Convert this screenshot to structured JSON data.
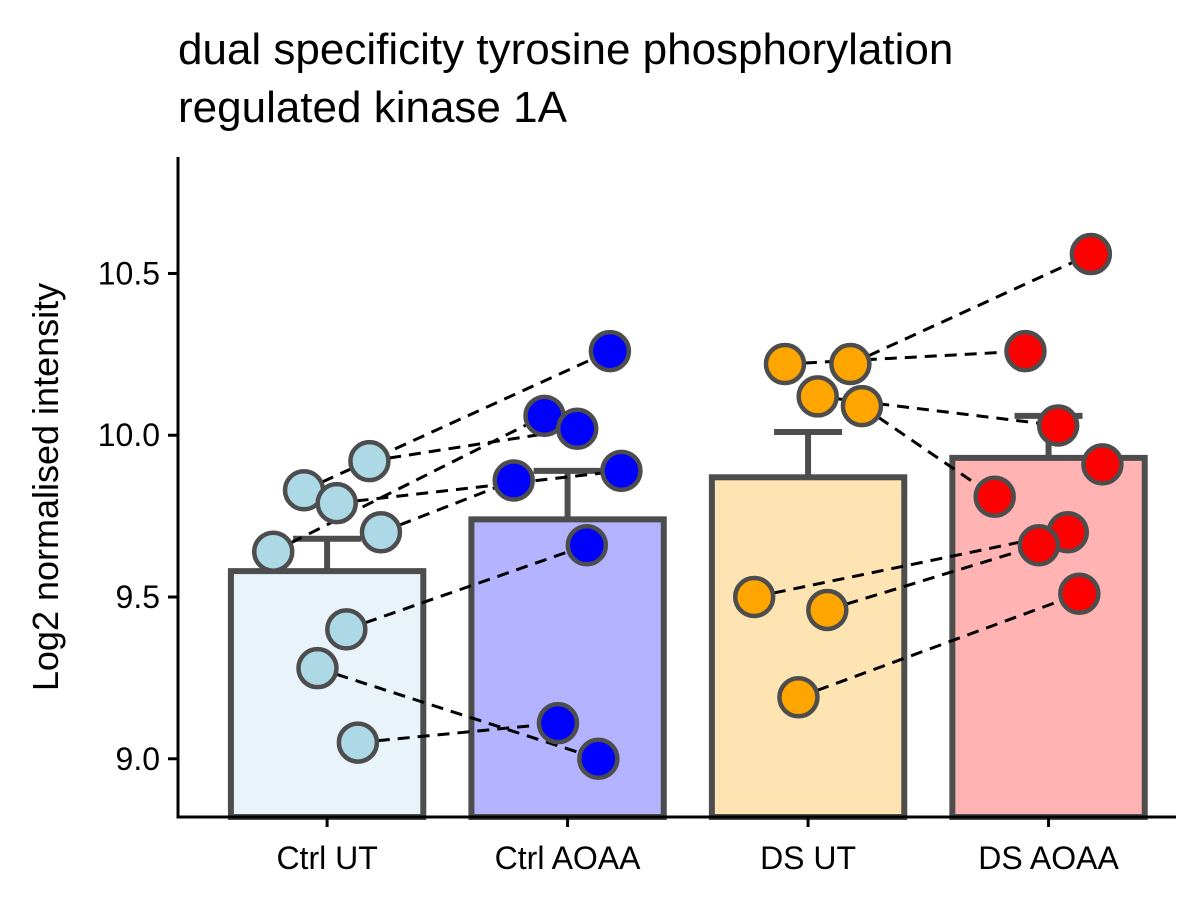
{
  "chart_data": {
    "type": "bar",
    "title_lines": [
      "dual specificity tyrosine phosphorylation",
      "regulated kinase 1A"
    ],
    "xlabel": "",
    "ylabel": "Log2 normalised intensity",
    "ylim": [
      8.82,
      10.86
    ],
    "yticks": [
      9.0,
      9.5,
      10.0,
      10.5
    ],
    "ytick_labels": [
      "9.0",
      "9.5",
      "10.0",
      "10.5"
    ],
    "grid": false,
    "legend": "none",
    "categories": [
      "Ctrl UT",
      "Ctrl AOAA",
      "DS UT",
      "DS AOAA"
    ],
    "bars": [
      {
        "category": "Ctrl UT",
        "mean": 9.58,
        "error_upper": 9.68,
        "fill": "#e8f3fa",
        "point_color": "#add8e6",
        "points": [
          9.92,
          9.83,
          9.79,
          9.7,
          9.64,
          9.4,
          9.28,
          9.05
        ]
      },
      {
        "category": "Ctrl AOAA",
        "mean": 9.74,
        "error_upper": 9.89,
        "fill": "#b3b3ff",
        "point_color": "#0000ff",
        "points": [
          10.26,
          10.06,
          10.02,
          9.89,
          9.86,
          9.66,
          9.11,
          9.0
        ]
      },
      {
        "category": "DS UT",
        "mean": 9.87,
        "error_upper": 10.01,
        "fill": "#fee4b3",
        "point_color": "#ffa500",
        "points": [
          10.22,
          10.22,
          10.12,
          10.09,
          9.5,
          9.46,
          9.19
        ]
      },
      {
        "category": "DS AOAA",
        "mean": 9.93,
        "error_upper": 10.06,
        "fill": "#ffb3b3",
        "point_color": "#ff0000",
        "points": [
          10.56,
          10.26,
          10.03,
          9.91,
          9.81,
          9.7,
          9.66,
          9.51
        ]
      }
    ],
    "pairs": [
      {
        "from": [
          0,
          0
        ],
        "to": [
          1,
          2
        ]
      },
      {
        "from": [
          0,
          1
        ],
        "to": [
          1,
          0
        ]
      },
      {
        "from": [
          0,
          2
        ],
        "to": [
          1,
          3
        ]
      },
      {
        "from": [
          0,
          3
        ],
        "to": [
          1,
          4
        ]
      },
      {
        "from": [
          0,
          4
        ],
        "to": [
          1,
          1
        ]
      },
      {
        "from": [
          0,
          5
        ],
        "to": [
          1,
          5
        ]
      },
      {
        "from": [
          0,
          6
        ],
        "to": [
          1,
          7
        ]
      },
      {
        "from": [
          0,
          7
        ],
        "to": [
          1,
          6
        ]
      },
      {
        "from": [
          2,
          0
        ],
        "to": [
          3,
          0
        ]
      },
      {
        "from": [
          2,
          1
        ],
        "to": [
          3,
          1
        ]
      },
      {
        "from": [
          2,
          2
        ],
        "to": [
          3,
          2
        ]
      },
      {
        "from": [
          2,
          3
        ],
        "to": [
          3,
          4
        ]
      },
      {
        "from": [
          2,
          4
        ],
        "to": [
          3,
          5
        ]
      },
      {
        "from": [
          2,
          5
        ],
        "to": [
          3,
          6
        ]
      },
      {
        "from": [
          2,
          6
        ],
        "to": [
          3,
          7
        ]
      }
    ],
    "colors": {
      "outline": "#4d4d4d",
      "axis": "#000000",
      "pair_line": "#000000"
    }
  }
}
